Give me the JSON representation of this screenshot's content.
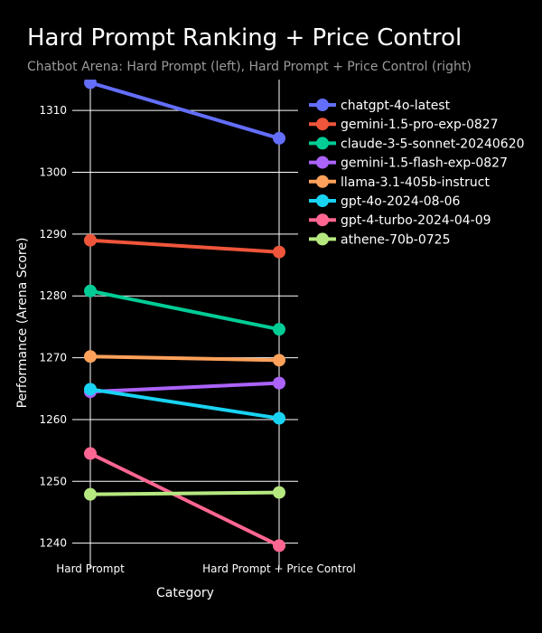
{
  "chart_data": {
    "type": "line",
    "title": "Hard Prompt Ranking + Price Control",
    "subtitle": "Chatbot Arena: Hard Prompt (left), Hard Prompt + Price Control (right)",
    "xlabel": "Category",
    "ylabel": "Performance (Arena Score)",
    "categories": [
      "Hard Prompt",
      "Hard Prompt + Price Control"
    ],
    "ylim": [
      1236,
      1315
    ],
    "yticks": [
      1240,
      1250,
      1260,
      1270,
      1280,
      1290,
      1300,
      1310
    ],
    "grid": true,
    "legend_position": "right",
    "series": [
      {
        "name": "chatgpt-4o-latest",
        "color": "#636efa",
        "values": [
          1314.5,
          1305.5
        ]
      },
      {
        "name": "gemini-1.5-pro-exp-0827",
        "color": "#ef553b",
        "values": [
          1289.0,
          1287.1
        ]
      },
      {
        "name": "claude-3-5-sonnet-20240620",
        "color": "#00cc96",
        "values": [
          1280.8,
          1274.6
        ]
      },
      {
        "name": "gemini-1.5-flash-exp-0827",
        "color": "#ab63fa",
        "values": [
          1264.5,
          1265.9
        ]
      },
      {
        "name": "llama-3.1-405b-instruct",
        "color": "#ffa15a",
        "values": [
          1270.2,
          1269.6
        ]
      },
      {
        "name": "gpt-4o-2024-08-06",
        "color": "#19d3f3",
        "values": [
          1264.9,
          1260.2
        ]
      },
      {
        "name": "gpt-4-turbo-2024-04-09",
        "color": "#ff6692",
        "values": [
          1254.5,
          1239.6
        ]
      },
      {
        "name": "athene-70b-0725",
        "color": "#b6e880",
        "values": [
          1247.9,
          1248.2
        ]
      }
    ]
  }
}
